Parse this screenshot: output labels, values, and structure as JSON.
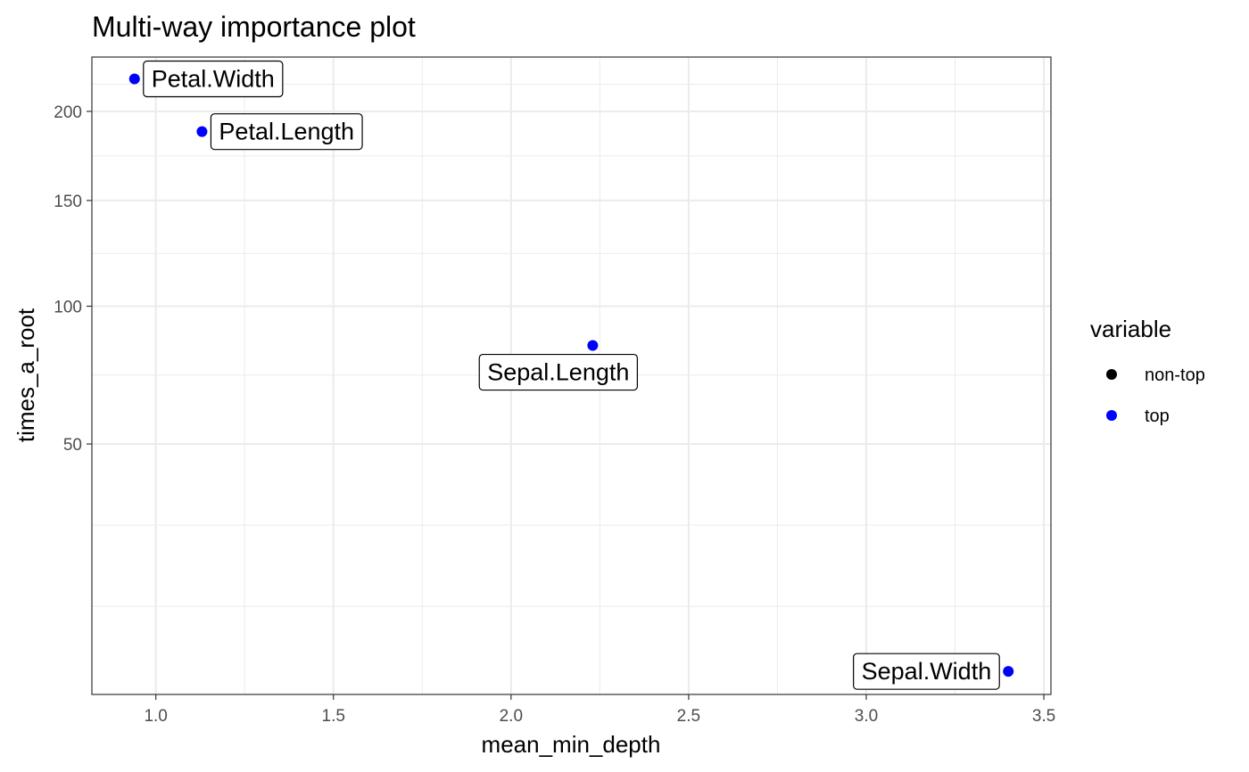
{
  "chart_data": {
    "type": "scatter",
    "title": "Multi-way importance plot",
    "xlabel": "mean_min_depth",
    "ylabel": "times_a_root",
    "x_scale": "linear",
    "y_scale": "sqrt",
    "xlim": [
      0.82,
      3.52
    ],
    "ylim": [
      3.05,
      234
    ],
    "x_ticks": [
      1.0,
      1.5,
      2.0,
      2.5,
      3.0,
      3.5
    ],
    "x_tick_labels": [
      "1.0",
      "1.5",
      "2.0",
      "2.5",
      "3.0",
      "3.5"
    ],
    "y_ticks": [
      50,
      100,
      150,
      200
    ],
    "y_tick_labels": [
      "50",
      "100",
      "150",
      "200"
    ],
    "grid": true,
    "legend": {
      "title": "variable",
      "placement": "right",
      "entries": [
        {
          "label": "non-top",
          "color": "#000000"
        },
        {
          "label": "top",
          "color": "#0000ff"
        }
      ]
    },
    "points": [
      {
        "label": "Petal.Width",
        "x": 0.94,
        "y": 220,
        "group": "top",
        "label_side": "right"
      },
      {
        "label": "Petal.Length",
        "x": 1.13,
        "y": 188,
        "group": "top",
        "label_side": "right"
      },
      {
        "label": "Sepal.Length",
        "x": 2.23,
        "y": 84,
        "group": "top",
        "label_side": "below-left"
      },
      {
        "label": "Sepal.Width",
        "x": 3.4,
        "y": 5,
        "group": "top",
        "label_side": "left"
      }
    ]
  }
}
